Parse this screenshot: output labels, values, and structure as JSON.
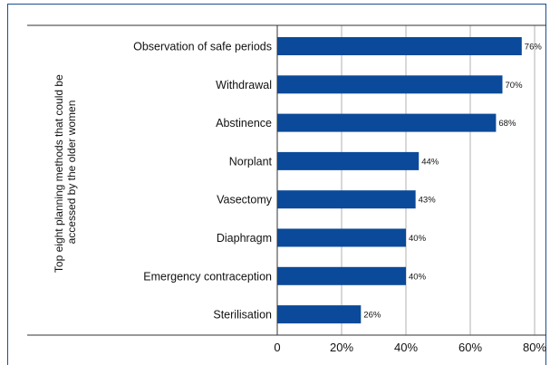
{
  "chart_data": {
    "type": "bar",
    "orientation": "horizontal",
    "ylabel": "Top eight planning methods that could be accessed by the older women",
    "ylabel_lines": [
      "Top eight planning methods that could be",
      "accessed by the older women"
    ],
    "xlabel": "",
    "categories": [
      "Observation of safe periods",
      "Withdrawal",
      "Abstinence",
      "Norplant",
      "Vasectomy",
      "Diaphragm",
      "Emergency contraception",
      "Sterilisation"
    ],
    "values": [
      76,
      70,
      68,
      44,
      43,
      40,
      40,
      26
    ],
    "data_labels": [
      "76%",
      "70%",
      "68%",
      "44%",
      "43%",
      "40%",
      "40%",
      "26%"
    ],
    "xlim": [
      0,
      80
    ],
    "xticks": [
      0,
      20,
      40,
      60,
      80
    ],
    "xtick_labels": [
      "0",
      "20%",
      "40%",
      "60%",
      "80%"
    ],
    "grid": "vertical",
    "legend": "none",
    "colors": {
      "bar": "#0b4a9a",
      "grid": "#b0b0b0",
      "frame": "#1a4f8f",
      "axis": "#333333"
    }
  }
}
